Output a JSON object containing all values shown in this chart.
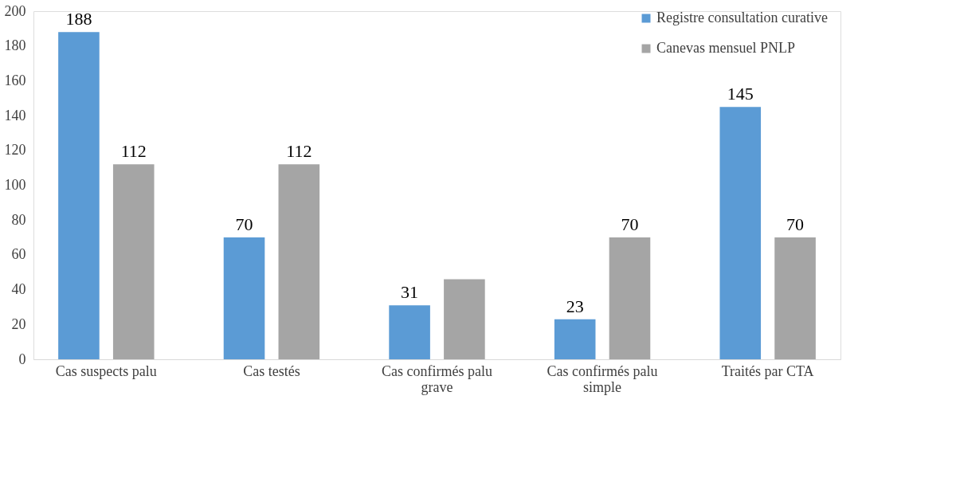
{
  "chart_data": {
    "type": "bar",
    "categories": [
      "Cas suspects palu",
      "Cas testés",
      "Cas confirmés palu grave",
      "Cas confirmés palu simple",
      "Traités par CTA"
    ],
    "series": [
      {
        "name": "Registre consultation  curative",
        "color": "#5b9bd5",
        "values": [
          188,
          70,
          31,
          23,
          145
        ],
        "value_labels": [
          "188",
          "70",
          "31",
          "23",
          "145"
        ]
      },
      {
        "name": "Canevas mensuel PNLP",
        "color": "#a5a5a5",
        "values": [
          112,
          112,
          46,
          70,
          70
        ],
        "value_labels": [
          "112",
          "112",
          null,
          "70",
          "70"
        ]
      }
    ],
    "ylim": [
      0,
      200
    ],
    "yticks": [
      0,
      20,
      40,
      60,
      80,
      100,
      120,
      140,
      160,
      180,
      200
    ],
    "grid": false,
    "legend": "top right"
  }
}
